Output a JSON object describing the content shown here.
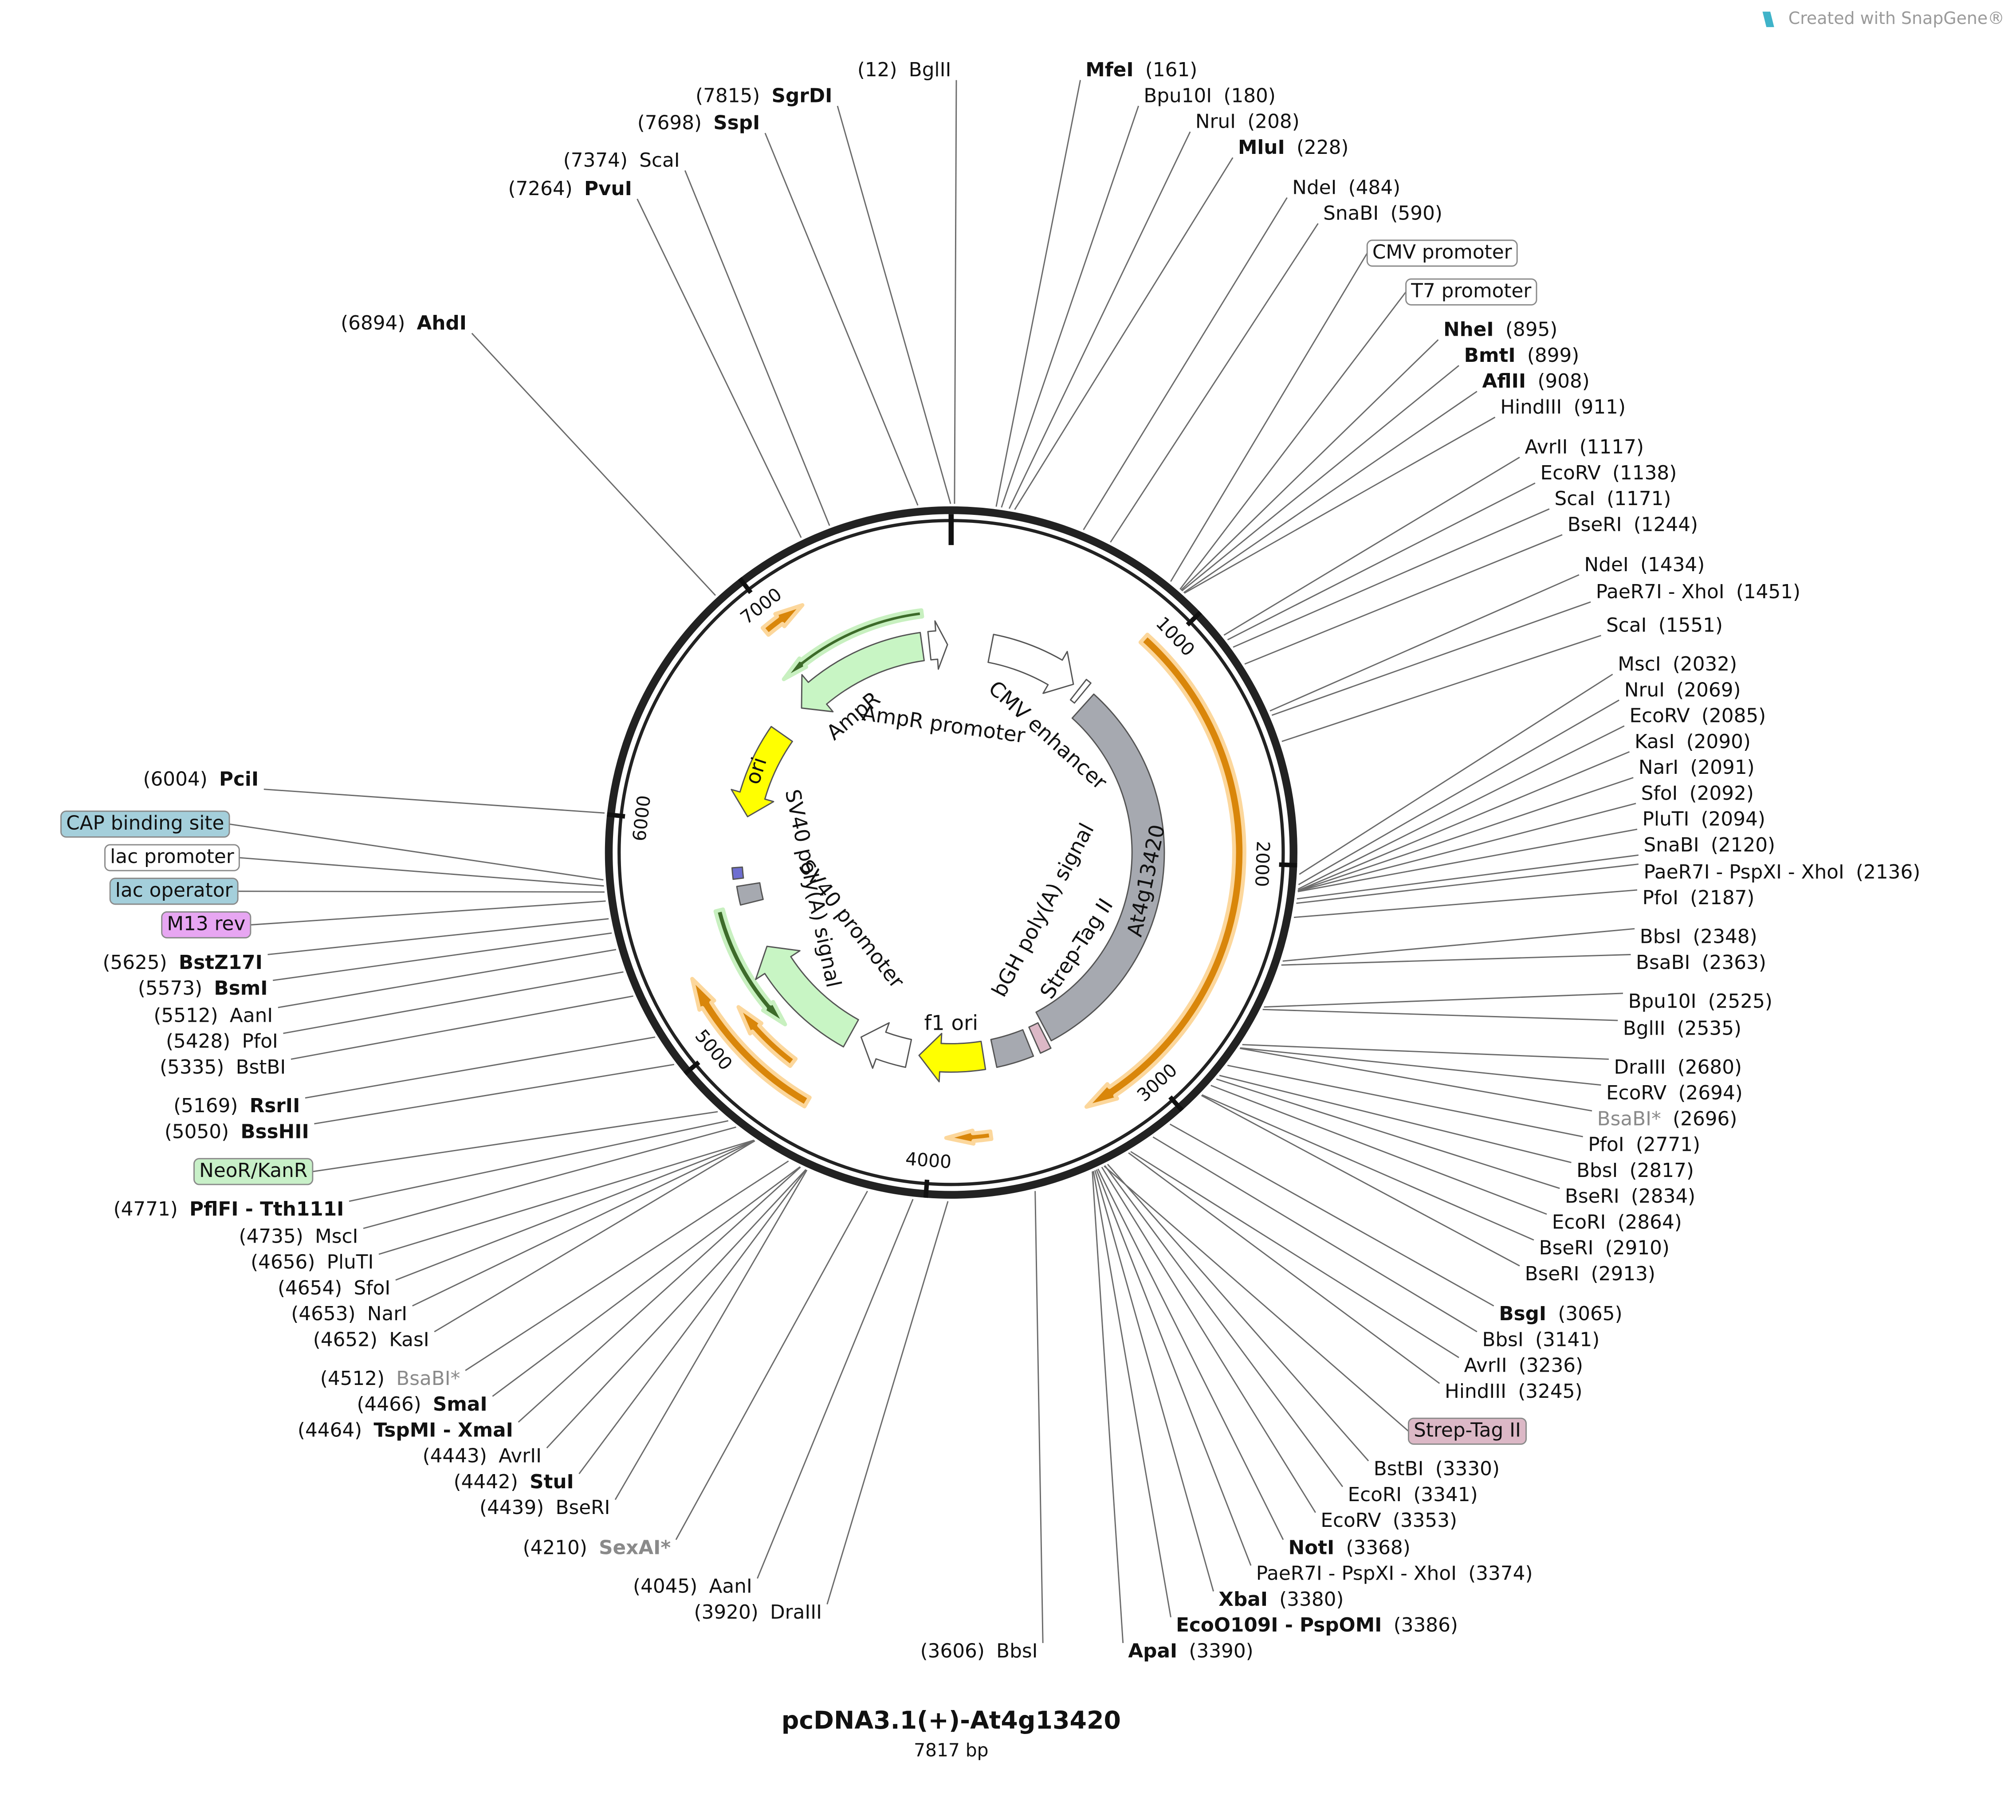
{
  "header": {
    "brand": "Created with SnapGene®"
  },
  "map": {
    "title": "pcDNA3.1(+)-At4g13420",
    "length": {
      "value": 7817,
      "label": "7817 bp"
    },
    "ticks": [
      1000,
      2000,
      3000,
      4000,
      5000,
      6000,
      7000
    ],
    "sites": [
      {
        "name": "BglII",
        "position": {
          "value": 12,
          "label": "(12)"
        }
      },
      {
        "name": "MfeI",
        "position": {
          "value": 161,
          "label": "(161)"
        },
        "style": "bold"
      },
      {
        "name": "Bpu10I",
        "position": {
          "value": 180,
          "label": "(180)"
        }
      },
      {
        "name": "NruI",
        "position": {
          "value": 208,
          "label": "(208)"
        }
      },
      {
        "name": "MluI",
        "position": {
          "value": 228,
          "label": "(228)"
        },
        "style": "bold"
      },
      {
        "name": "NdeI",
        "position": {
          "value": 484,
          "label": "(484)"
        }
      },
      {
        "name": "SnaBI",
        "position": {
          "value": 590,
          "label": "(590)"
        }
      },
      {
        "name": "NheI",
        "position": {
          "value": 895,
          "label": "(895)"
        },
        "style": "bold"
      },
      {
        "name": "BmtI",
        "position": {
          "value": 899,
          "label": "(899)"
        },
        "style": "bold"
      },
      {
        "name": "AflII",
        "position": {
          "value": 908,
          "label": "(908)"
        },
        "style": "bold"
      },
      {
        "name": "HindIII",
        "position": {
          "value": 911,
          "label": "(911)"
        }
      },
      {
        "name": "AvrII",
        "position": {
          "value": 1117,
          "label": "(1117)"
        }
      },
      {
        "name": "EcoRV",
        "position": {
          "value": 1138,
          "label": "(1138)"
        }
      },
      {
        "name": "ScaI",
        "position": {
          "value": 1171,
          "label": "(1171)"
        }
      },
      {
        "name": "BseRI",
        "position": {
          "value": 1244,
          "label": "(1244)"
        }
      },
      {
        "name": "NdeI",
        "position": {
          "value": 1434,
          "label": "(1434)"
        }
      },
      {
        "name": "PaeR7I - XhoI",
        "position": {
          "value": 1451,
          "label": "(1451)"
        }
      },
      {
        "name": "ScaI",
        "position": {
          "value": 1551,
          "label": "(1551)"
        }
      },
      {
        "name": "MscI",
        "position": {
          "value": 2032,
          "label": "(2032)"
        }
      },
      {
        "name": "NruI",
        "position": {
          "value": 2069,
          "label": "(2069)"
        }
      },
      {
        "name": "EcoRV",
        "position": {
          "value": 2085,
          "label": "(2085)"
        }
      },
      {
        "name": "KasI",
        "position": {
          "value": 2090,
          "label": "(2090)"
        }
      },
      {
        "name": "NarI",
        "position": {
          "value": 2091,
          "label": "(2091)"
        }
      },
      {
        "name": "SfoI",
        "position": {
          "value": 2092,
          "label": "(2092)"
        }
      },
      {
        "name": "PluTI",
        "position": {
          "value": 2094,
          "label": "(2094)"
        }
      },
      {
        "name": "SnaBI",
        "position": {
          "value": 2120,
          "label": "(2120)"
        }
      },
      {
        "name": "PaeR7I - PspXI - XhoI",
        "position": {
          "value": 2136,
          "label": "(2136)"
        }
      },
      {
        "name": "PfoI",
        "position": {
          "value": 2187,
          "label": "(2187)"
        }
      },
      {
        "name": "BbsI",
        "position": {
          "value": 2348,
          "label": "(2348)"
        }
      },
      {
        "name": "BsaBI",
        "position": {
          "value": 2363,
          "label": "(2363)"
        }
      },
      {
        "name": "Bpu10I",
        "position": {
          "value": 2525,
          "label": "(2525)"
        }
      },
      {
        "name": "BglII",
        "position": {
          "value": 2535,
          "label": "(2535)"
        }
      },
      {
        "name": "DraIII",
        "position": {
          "value": 2680,
          "label": "(2680)"
        }
      },
      {
        "name": "EcoRV",
        "position": {
          "value": 2694,
          "label": "(2694)"
        }
      },
      {
        "name": "BsaBI*",
        "position": {
          "value": 2696,
          "label": "(2696)"
        },
        "style": "gray"
      },
      {
        "name": "PfoI",
        "position": {
          "value": 2771,
          "label": "(2771)"
        }
      },
      {
        "name": "BbsI",
        "position": {
          "value": 2817,
          "label": "(2817)"
        }
      },
      {
        "name": "BseRI",
        "position": {
          "value": 2834,
          "label": "(2834)"
        }
      },
      {
        "name": "EcoRI",
        "position": {
          "value": 2864,
          "label": "(2864)"
        }
      },
      {
        "name": "BseRI",
        "position": {
          "value": 2910,
          "label": "(2910)"
        }
      },
      {
        "name": "BseRI",
        "position": {
          "value": 2913,
          "label": "(2913)"
        }
      },
      {
        "name": "BsgI",
        "position": {
          "value": 3065,
          "label": "(3065)"
        },
        "style": "bold"
      },
      {
        "name": "BbsI",
        "position": {
          "value": 3141,
          "label": "(3141)"
        }
      },
      {
        "name": "AvrII",
        "position": {
          "value": 3236,
          "label": "(3236)"
        }
      },
      {
        "name": "HindIII",
        "position": {
          "value": 3245,
          "label": "(3245)"
        }
      },
      {
        "name": "BstBI",
        "position": {
          "value": 3330,
          "label": "(3330)"
        }
      },
      {
        "name": "EcoRI",
        "position": {
          "value": 3341,
          "label": "(3341)"
        }
      },
      {
        "name": "EcoRV",
        "position": {
          "value": 3353,
          "label": "(3353)"
        }
      },
      {
        "name": "NotI",
        "position": {
          "value": 3368,
          "label": "(3368)"
        },
        "style": "bold"
      },
      {
        "name": "PaeR7I - PspXI - XhoI",
        "position": {
          "value": 3374,
          "label": "(3374)"
        }
      },
      {
        "name": "XbaI",
        "position": {
          "value": 3380,
          "label": "(3380)"
        },
        "style": "bold"
      },
      {
        "name": "EcoO109I - PspOMI",
        "position": {
          "value": 3386,
          "label": "(3386)"
        },
        "style": "bold"
      },
      {
        "name": "ApaI",
        "position": {
          "value": 3390,
          "label": "(3390)"
        },
        "style": "bold"
      },
      {
        "name": "BbsI",
        "position": {
          "value": 3606,
          "label": "(3606)"
        }
      },
      {
        "name": "DraIII",
        "position": {
          "value": 3920,
          "label": "(3920)"
        }
      },
      {
        "name": "AanI",
        "position": {
          "value": 4045,
          "label": "(4045)"
        }
      },
      {
        "name": "SexAI*",
        "position": {
          "value": 4210,
          "label": "(4210)"
        },
        "style": "gray-bold"
      },
      {
        "name": "BseRI",
        "position": {
          "value": 4439,
          "label": "(4439)"
        }
      },
      {
        "name": "StuI",
        "position": {
          "value": 4442,
          "label": "(4442)"
        },
        "style": "bold"
      },
      {
        "name": "AvrII",
        "position": {
          "value": 4443,
          "label": "(4443)"
        }
      },
      {
        "name": "TspMI - XmaI",
        "position": {
          "value": 4464,
          "label": "(4464)"
        },
        "style": "bold"
      },
      {
        "name": "SmaI",
        "position": {
          "value": 4466,
          "label": "(4466)"
        },
        "style": "bold"
      },
      {
        "name": "BsaBI*",
        "position": {
          "value": 4512,
          "label": "(4512)"
        },
        "style": "gray"
      },
      {
        "name": "KasI",
        "position": {
          "value": 4652,
          "label": "(4652)"
        }
      },
      {
        "name": "NarI",
        "position": {
          "value": 4653,
          "label": "(4653)"
        }
      },
      {
        "name": "SfoI",
        "position": {
          "value": 4654,
          "label": "(4654)"
        }
      },
      {
        "name": "PluTI",
        "position": {
          "value": 4656,
          "label": "(4656)"
        }
      },
      {
        "name": "MscI",
        "position": {
          "value": 4735,
          "label": "(4735)"
        }
      },
      {
        "name": "PflFI - Tth111I",
        "position": {
          "value": 4771,
          "label": "(4771)"
        },
        "style": "bold"
      },
      {
        "name": "BssHII",
        "position": {
          "value": 5050,
          "label": "(5050)"
        },
        "style": "bold"
      },
      {
        "name": "RsrII",
        "position": {
          "value": 5169,
          "label": "(5169)"
        },
        "style": "bold"
      },
      {
        "name": "BstBI",
        "position": {
          "value": 5335,
          "label": "(5335)"
        }
      },
      {
        "name": "PfoI",
        "position": {
          "value": 5428,
          "label": "(5428)"
        }
      },
      {
        "name": "AanI",
        "position": {
          "value": 5512,
          "label": "(5512)"
        }
      },
      {
        "name": "BsmI",
        "position": {
          "value": 5573,
          "label": "(5573)"
        },
        "style": "bold"
      },
      {
        "name": "BstZ17I",
        "position": {
          "value": 5625,
          "label": "(5625)"
        },
        "style": "bold"
      },
      {
        "name": "PciI",
        "position": {
          "value": 6004,
          "label": "(6004)"
        },
        "style": "bold"
      },
      {
        "name": "AhdI",
        "position": {
          "value": 6894,
          "label": "(6894)"
        },
        "style": "bold"
      },
      {
        "name": "PvuI",
        "position": {
          "value": 7264,
          "label": "(7264)"
        },
        "style": "bold"
      },
      {
        "name": "ScaI",
        "position": {
          "value": 7374,
          "label": "(7374)"
        }
      },
      {
        "name": "SspI",
        "position": {
          "value": 7698,
          "label": "(7698)"
        },
        "style": "bold"
      },
      {
        "name": "SgrDI",
        "position": {
          "value": 7815,
          "label": "(7815)"
        },
        "style": "bold"
      }
    ],
    "features": [
      {
        "name": "CMV enhancer",
        "kind": "inner"
      },
      {
        "name": "CMV promoter",
        "kind": "box",
        "color": "#ffffff"
      },
      {
        "name": "T7 promoter",
        "kind": "box",
        "color": "#ffffff"
      },
      {
        "name": "At4g13420",
        "kind": "inner"
      },
      {
        "name": "Strep-Tag II",
        "kind": "inner"
      },
      {
        "name": "Strep-Tag II",
        "kind": "box",
        "color": "#dcb8c6"
      },
      {
        "name": "bGH poly(A) signal",
        "kind": "inner"
      },
      {
        "name": "f1 ori",
        "kind": "inner"
      },
      {
        "name": "SV40 promoter",
        "kind": "inner"
      },
      {
        "name": "NeoR/KanR",
        "kind": "box",
        "color": "#c8f0c8"
      },
      {
        "name": "SV40 poly(A) signal",
        "kind": "inner"
      },
      {
        "name": "M13 rev",
        "kind": "box",
        "color": "#e7a6f2"
      },
      {
        "name": "lac operator",
        "kind": "box",
        "color": "#a4cfdb"
      },
      {
        "name": "lac promoter",
        "kind": "box",
        "color": "#ffffff"
      },
      {
        "name": "CAP binding site",
        "kind": "box",
        "color": "#a4cfdb"
      },
      {
        "name": "ori",
        "kind": "inner"
      },
      {
        "name": "AmpR",
        "kind": "inner"
      },
      {
        "name": "AmpR promoter",
        "kind": "inner"
      }
    ]
  }
}
